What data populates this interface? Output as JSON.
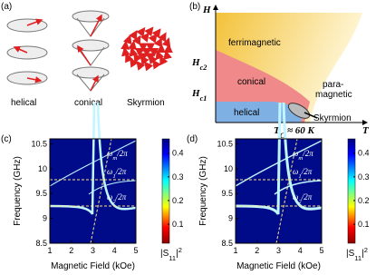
{
  "figure": {
    "a": {
      "label": "(a)",
      "captions": [
        "helical",
        "conical",
        "Skyrmion"
      ]
    },
    "b": {
      "label": "(b)",
      "y_axis": "H",
      "x_axis": "T",
      "field_ticks": [
        {
          "main": "H",
          "sub": "c2"
        },
        {
          "main": "H",
          "sub": "c1"
        }
      ],
      "tc": {
        "main": "T",
        "sub": "C",
        "rest": " ≈ 60 K"
      },
      "regions": [
        "ferrimagnetic",
        "conical",
        "helical",
        "para-",
        "magnetic",
        "Skyrmion"
      ]
    },
    "maps": [
      {
        "label": "(c)",
        "xlabel": "Magnetic Field (kOe)",
        "ylabel": "Frequency (GHz)",
        "xlim": [
          1,
          5
        ],
        "xticks": [
          1,
          2,
          3,
          4,
          5
        ],
        "ylim": [
          8.5,
          10.6
        ],
        "yticks": [
          8.5,
          9,
          9.5,
          10,
          10.5
        ],
        "clim": [
          0.02,
          0.46
        ],
        "cticks": [
          0.1,
          0.2,
          0.3,
          0.4
        ],
        "colorbar_label": {
          "text": "|S",
          "sub": "11",
          "end": "|",
          "sup": "2"
        },
        "annotations": [
          {
            "main": "ω",
            "sub": "m",
            "rest": "/2π"
          },
          {
            "main": "ω",
            "sub": "1",
            "rest": "/2π"
          },
          {
            "main": "ω",
            "sub": "2",
            "rest": "/2π"
          }
        ]
      },
      {
        "label": "(d)",
        "xlabel": "Magnetic Field (kOe)",
        "ylabel": "Frequency (GHz)",
        "xlim": [
          1,
          5
        ],
        "xticks": [
          1,
          2,
          3,
          4,
          5
        ],
        "ylim": [
          8.5,
          10.6
        ],
        "yticks": [
          8.5,
          9,
          9.5,
          10,
          10.5
        ],
        "clim": [
          0.02,
          0.46
        ],
        "cticks": [
          0.1,
          0.2,
          0.3,
          0.4
        ],
        "colorbar_label": {
          "text": "|S",
          "sub": "11",
          "end": "|",
          "sup": "2"
        },
        "annotations": [
          {
            "main": "ω",
            "sub": "m",
            "rest": "/2π"
          },
          {
            "main": "ω",
            "sub": "1",
            "rest": "/2π"
          },
          {
            "main": "ω",
            "sub": "2",
            "rest": "/2π"
          }
        ]
      }
    ]
  }
}
